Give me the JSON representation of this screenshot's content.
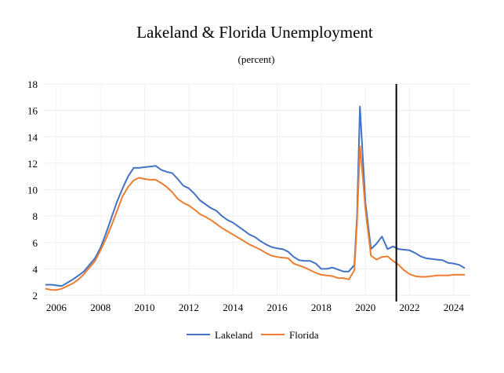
{
  "chart_data": {
    "type": "line",
    "title": "Lakeland & Florida Unemployment",
    "subtitle": "(percent)",
    "xlabel": "",
    "ylabel": "",
    "xlim": [
      2005.4,
      2024.75
    ],
    "ylim": [
      2,
      18
    ],
    "x_ticks": [
      2006,
      2008,
      2010,
      2012,
      2014,
      2016,
      2018,
      2020,
      2022,
      2024
    ],
    "y_ticks": [
      2,
      4,
      6,
      8,
      10,
      12,
      14,
      16,
      18
    ],
    "grid": true,
    "legend_position": "bottom",
    "vertical_marker_x": 2021.4,
    "series": [
      {
        "name": "Lakeland",
        "color": "#4472c4",
        "points": [
          [
            2005.5,
            2.8
          ],
          [
            2005.8,
            2.8
          ],
          [
            2006.0,
            2.75
          ],
          [
            2006.25,
            2.7
          ],
          [
            2006.5,
            2.95
          ],
          [
            2006.75,
            3.2
          ],
          [
            2007.0,
            3.5
          ],
          [
            2007.25,
            3.8
          ],
          [
            2007.5,
            4.3
          ],
          [
            2007.75,
            4.8
          ],
          [
            2008.0,
            5.6
          ],
          [
            2008.25,
            6.7
          ],
          [
            2008.5,
            7.9
          ],
          [
            2008.75,
            9.1
          ],
          [
            2009.0,
            10.1
          ],
          [
            2009.25,
            11.0
          ],
          [
            2009.5,
            11.65
          ],
          [
            2009.75,
            11.65
          ],
          [
            2010.0,
            11.7
          ],
          [
            2010.25,
            11.75
          ],
          [
            2010.5,
            11.8
          ],
          [
            2010.75,
            11.5
          ],
          [
            2011.0,
            11.35
          ],
          [
            2011.25,
            11.25
          ],
          [
            2011.5,
            10.8
          ],
          [
            2011.75,
            10.3
          ],
          [
            2012.0,
            10.1
          ],
          [
            2012.25,
            9.7
          ],
          [
            2012.5,
            9.2
          ],
          [
            2012.75,
            8.9
          ],
          [
            2013.0,
            8.6
          ],
          [
            2013.25,
            8.4
          ],
          [
            2013.5,
            8.0
          ],
          [
            2013.75,
            7.7
          ],
          [
            2014.0,
            7.5
          ],
          [
            2014.25,
            7.2
          ],
          [
            2014.5,
            6.9
          ],
          [
            2014.75,
            6.6
          ],
          [
            2015.0,
            6.4
          ],
          [
            2015.25,
            6.1
          ],
          [
            2015.5,
            5.85
          ],
          [
            2015.75,
            5.65
          ],
          [
            2016.0,
            5.55
          ],
          [
            2016.25,
            5.5
          ],
          [
            2016.5,
            5.3
          ],
          [
            2016.75,
            4.9
          ],
          [
            2017.0,
            4.65
          ],
          [
            2017.25,
            4.6
          ],
          [
            2017.5,
            4.6
          ],
          [
            2017.75,
            4.4
          ],
          [
            2018.0,
            4.0
          ],
          [
            2018.25,
            4.0
          ],
          [
            2018.5,
            4.1
          ],
          [
            2018.75,
            3.95
          ],
          [
            2019.0,
            3.8
          ],
          [
            2019.25,
            3.8
          ],
          [
            2019.5,
            4.3
          ],
          [
            2019.62,
            8.0
          ],
          [
            2019.75,
            16.3
          ],
          [
            2019.88,
            12.5
          ],
          [
            2020.0,
            9.0
          ],
          [
            2020.25,
            5.5
          ],
          [
            2020.5,
            5.9
          ],
          [
            2020.75,
            6.45
          ],
          [
            2021.0,
            5.5
          ],
          [
            2021.25,
            5.7
          ],
          [
            2021.5,
            5.5
          ],
          [
            2021.75,
            5.45
          ],
          [
            2022.0,
            5.4
          ],
          [
            2022.25,
            5.2
          ],
          [
            2022.5,
            4.95
          ],
          [
            2022.75,
            4.8
          ],
          [
            2023.0,
            4.75
          ],
          [
            2023.25,
            4.7
          ],
          [
            2023.5,
            4.65
          ],
          [
            2023.75,
            4.45
          ],
          [
            2024.0,
            4.4
          ],
          [
            2024.25,
            4.3
          ],
          [
            2024.5,
            4.05
          ]
        ]
      },
      {
        "name": "Florida",
        "color": "#ed7d31",
        "points": [
          [
            2005.5,
            2.5
          ],
          [
            2005.8,
            2.4
          ],
          [
            2006.0,
            2.4
          ],
          [
            2006.25,
            2.5
          ],
          [
            2006.5,
            2.7
          ],
          [
            2006.75,
            2.9
          ],
          [
            2007.0,
            3.2
          ],
          [
            2007.25,
            3.6
          ],
          [
            2007.5,
            4.1
          ],
          [
            2007.75,
            4.6
          ],
          [
            2008.0,
            5.4
          ],
          [
            2008.25,
            6.3
          ],
          [
            2008.5,
            7.3
          ],
          [
            2008.75,
            8.4
          ],
          [
            2009.0,
            9.5
          ],
          [
            2009.25,
            10.2
          ],
          [
            2009.5,
            10.7
          ],
          [
            2009.75,
            10.9
          ],
          [
            2010.0,
            10.8
          ],
          [
            2010.25,
            10.75
          ],
          [
            2010.5,
            10.75
          ],
          [
            2010.75,
            10.5
          ],
          [
            2011.0,
            10.2
          ],
          [
            2011.25,
            9.8
          ],
          [
            2011.5,
            9.3
          ],
          [
            2011.75,
            9.0
          ],
          [
            2012.0,
            8.8
          ],
          [
            2012.25,
            8.5
          ],
          [
            2012.5,
            8.15
          ],
          [
            2012.75,
            7.95
          ],
          [
            2013.0,
            7.7
          ],
          [
            2013.25,
            7.4
          ],
          [
            2013.5,
            7.1
          ],
          [
            2013.75,
            6.85
          ],
          [
            2014.0,
            6.6
          ],
          [
            2014.25,
            6.35
          ],
          [
            2014.5,
            6.1
          ],
          [
            2014.75,
            5.85
          ],
          [
            2015.0,
            5.65
          ],
          [
            2015.25,
            5.45
          ],
          [
            2015.5,
            5.2
          ],
          [
            2015.75,
            5.0
          ],
          [
            2016.0,
            4.9
          ],
          [
            2016.25,
            4.85
          ],
          [
            2016.5,
            4.8
          ],
          [
            2016.75,
            4.4
          ],
          [
            2017.0,
            4.25
          ],
          [
            2017.25,
            4.1
          ],
          [
            2017.5,
            3.9
          ],
          [
            2017.75,
            3.7
          ],
          [
            2018.0,
            3.55
          ],
          [
            2018.25,
            3.5
          ],
          [
            2018.5,
            3.45
          ],
          [
            2018.75,
            3.3
          ],
          [
            2019.0,
            3.3
          ],
          [
            2019.25,
            3.2
          ],
          [
            2019.5,
            3.9
          ],
          [
            2019.62,
            7.5
          ],
          [
            2019.75,
            13.3
          ],
          [
            2019.88,
            11.0
          ],
          [
            2020.0,
            8.5
          ],
          [
            2020.25,
            5.0
          ],
          [
            2020.5,
            4.7
          ],
          [
            2020.75,
            4.9
          ],
          [
            2021.0,
            4.95
          ],
          [
            2021.25,
            4.6
          ],
          [
            2021.5,
            4.3
          ],
          [
            2021.75,
            3.9
          ],
          [
            2022.0,
            3.6
          ],
          [
            2022.25,
            3.45
          ],
          [
            2022.5,
            3.4
          ],
          [
            2022.75,
            3.4
          ],
          [
            2023.0,
            3.45
          ],
          [
            2023.25,
            3.5
          ],
          [
            2023.5,
            3.5
          ],
          [
            2023.75,
            3.5
          ],
          [
            2024.0,
            3.55
          ],
          [
            2024.25,
            3.55
          ],
          [
            2024.5,
            3.55
          ]
        ]
      }
    ]
  }
}
